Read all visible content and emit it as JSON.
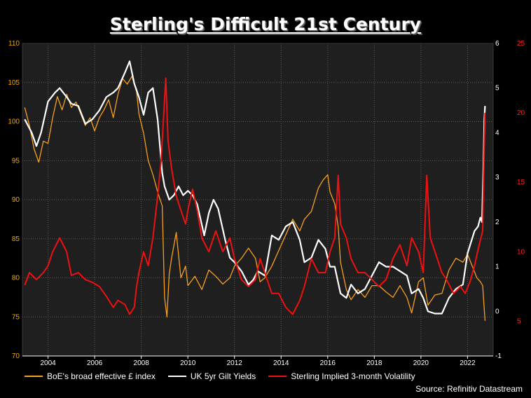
{
  "title": "Sterling's Difficult 21st Century",
  "source": "Source: Refinitiv Datastream",
  "colors": {
    "background": "#000000",
    "plot_background": "#1f1f1f",
    "grid": "#5a5a5a",
    "left_axis": "#f2a900",
    "right_axis_inner": "#ffffff",
    "right_axis_outer": "#ff2020",
    "series_effective": "#f7a01e",
    "series_gilt": "#ffffff",
    "series_vol": "#ee1111"
  },
  "legend": {
    "effective": "BoE's broad effective £ index",
    "gilt": "UK 5yr Gilt Yields",
    "vol": "Sterling Implied 3-month Volatility"
  },
  "chart_data": {
    "type": "line",
    "title": "Sterling's Difficult 21st Century",
    "grid": true,
    "legend_position": "bottom",
    "x_ticks": [
      "2004",
      "2006",
      "2008",
      "2010",
      "2012",
      "2014",
      "2016",
      "2018",
      "2020",
      "2022"
    ],
    "x_range": [
      2002.9,
      2023.1
    ],
    "y_left": {
      "ticks": [
        "70",
        "75",
        "80",
        "85",
        "90",
        "95",
        "100",
        "105",
        "110"
      ],
      "range": [
        70,
        110
      ]
    },
    "y_right_inner": {
      "ticks": [
        "-1",
        "0",
        "1",
        "2",
        "3",
        "4",
        "5",
        "6"
      ],
      "range": [
        -1,
        6
      ]
    },
    "y_right_outer": {
      "ticks": [
        "5",
        "10",
        "15",
        "20",
        "25"
      ],
      "range": [
        2.5,
        25
      ]
    },
    "series": [
      {
        "name": "BoE's broad effective £ index",
        "axis": "left",
        "points": [
          [
            2003.0,
            101.8
          ],
          [
            2003.2,
            99.5
          ],
          [
            2003.4,
            96.5
          ],
          [
            2003.6,
            94.8
          ],
          [
            2003.8,
            97.5
          ],
          [
            2004.0,
            97.2
          ],
          [
            2004.2,
            100.5
          ],
          [
            2004.4,
            103.2
          ],
          [
            2004.6,
            101.5
          ],
          [
            2004.8,
            103.5
          ],
          [
            2005.0,
            101.8
          ],
          [
            2005.2,
            102.5
          ],
          [
            2005.4,
            101.0
          ],
          [
            2005.6,
            99.5
          ],
          [
            2005.8,
            100.5
          ],
          [
            2006.0,
            98.8
          ],
          [
            2006.2,
            100.5
          ],
          [
            2006.4,
            101.5
          ],
          [
            2006.6,
            102.8
          ],
          [
            2006.8,
            100.5
          ],
          [
            2007.0,
            103.5
          ],
          [
            2007.2,
            105.5
          ],
          [
            2007.4,
            104.8
          ],
          [
            2007.6,
            105.8
          ],
          [
            2007.8,
            103.8
          ],
          [
            2007.9,
            101.0
          ],
          [
            2008.1,
            98.5
          ],
          [
            2008.3,
            95.0
          ],
          [
            2008.5,
            93.2
          ],
          [
            2008.7,
            91.0
          ],
          [
            2008.9,
            89.2
          ],
          [
            2009.0,
            77.5
          ],
          [
            2009.1,
            75.0
          ],
          [
            2009.2,
            80.5
          ],
          [
            2009.3,
            82.5
          ],
          [
            2009.5,
            85.8
          ],
          [
            2009.7,
            80.0
          ],
          [
            2009.9,
            81.5
          ],
          [
            2010.0,
            79.0
          ],
          [
            2010.3,
            80.2
          ],
          [
            2010.6,
            78.5
          ],
          [
            2010.9,
            81.0
          ],
          [
            2011.2,
            80.2
          ],
          [
            2011.5,
            79.2
          ],
          [
            2011.8,
            80.0
          ],
          [
            2012.0,
            81.5
          ],
          [
            2012.3,
            82.5
          ],
          [
            2012.6,
            83.8
          ],
          [
            2012.9,
            82.5
          ],
          [
            2013.1,
            79.5
          ],
          [
            2013.3,
            80.0
          ],
          [
            2013.6,
            81.5
          ],
          [
            2013.9,
            83.5
          ],
          [
            2014.2,
            85.5
          ],
          [
            2014.5,
            87.5
          ],
          [
            2014.8,
            86.0
          ],
          [
            2015.0,
            87.5
          ],
          [
            2015.3,
            88.5
          ],
          [
            2015.6,
            91.5
          ],
          [
            2015.8,
            92.5
          ],
          [
            2016.0,
            93.2
          ],
          [
            2016.1,
            91.0
          ],
          [
            2016.3,
            89.5
          ],
          [
            2016.45,
            86.5
          ],
          [
            2016.55,
            82.0
          ],
          [
            2016.8,
            78.5
          ],
          [
            2017.0,
            77.2
          ],
          [
            2017.3,
            78.5
          ],
          [
            2017.6,
            77.5
          ],
          [
            2017.9,
            79.0
          ],
          [
            2018.2,
            79.0
          ],
          [
            2018.5,
            78.2
          ],
          [
            2018.8,
            77.5
          ],
          [
            2019.1,
            79.0
          ],
          [
            2019.4,
            77.5
          ],
          [
            2019.6,
            75.5
          ],
          [
            2019.9,
            79.5
          ],
          [
            2020.1,
            80.0
          ],
          [
            2020.3,
            76.5
          ],
          [
            2020.6,
            77.8
          ],
          [
            2020.9,
            78.0
          ],
          [
            2021.2,
            81.0
          ],
          [
            2021.5,
            82.5
          ],
          [
            2021.8,
            82.0
          ],
          [
            2022.0,
            83.0
          ],
          [
            2022.2,
            81.5
          ],
          [
            2022.4,
            80.0
          ],
          [
            2022.55,
            79.5
          ],
          [
            2022.65,
            79.0
          ],
          [
            2022.75,
            74.5
          ]
        ]
      },
      {
        "name": "UK 5yr Gilt Yields",
        "axis": "right_inner",
        "points": [
          [
            2003.0,
            4.3
          ],
          [
            2003.3,
            4.0
          ],
          [
            2003.5,
            3.7
          ],
          [
            2003.7,
            4.0
          ],
          [
            2004.0,
            4.7
          ],
          [
            2004.3,
            4.9
          ],
          [
            2004.5,
            5.0
          ],
          [
            2004.8,
            4.8
          ],
          [
            2005.0,
            4.65
          ],
          [
            2005.3,
            4.6
          ],
          [
            2005.6,
            4.2
          ],
          [
            2005.9,
            4.3
          ],
          [
            2006.2,
            4.5
          ],
          [
            2006.5,
            4.8
          ],
          [
            2006.8,
            4.9
          ],
          [
            2007.0,
            5.0
          ],
          [
            2007.3,
            5.35
          ],
          [
            2007.5,
            5.6
          ],
          [
            2007.7,
            5.1
          ],
          [
            2007.9,
            4.8
          ],
          [
            2008.1,
            4.4
          ],
          [
            2008.3,
            4.9
          ],
          [
            2008.5,
            5.0
          ],
          [
            2008.7,
            4.3
          ],
          [
            2008.9,
            3.1
          ],
          [
            2009.0,
            2.8
          ],
          [
            2009.2,
            2.5
          ],
          [
            2009.4,
            2.6
          ],
          [
            2009.6,
            2.8
          ],
          [
            2009.8,
            2.6
          ],
          [
            2010.0,
            2.7
          ],
          [
            2010.2,
            2.6
          ],
          [
            2010.4,
            2.4
          ],
          [
            2010.7,
            1.7
          ],
          [
            2010.9,
            2.2
          ],
          [
            2011.1,
            2.5
          ],
          [
            2011.3,
            2.3
          ],
          [
            2011.6,
            1.6
          ],
          [
            2011.8,
            1.2
          ],
          [
            2012.0,
            1.1
          ],
          [
            2012.3,
            0.9
          ],
          [
            2012.6,
            0.6
          ],
          [
            2012.8,
            0.7
          ],
          [
            2013.0,
            0.9
          ],
          [
            2013.3,
            0.8
          ],
          [
            2013.6,
            1.7
          ],
          [
            2013.9,
            1.6
          ],
          [
            2014.2,
            1.9
          ],
          [
            2014.5,
            2.0
          ],
          [
            2014.8,
            1.6
          ],
          [
            2015.0,
            1.1
          ],
          [
            2015.3,
            1.2
          ],
          [
            2015.6,
            1.6
          ],
          [
            2015.9,
            1.4
          ],
          [
            2016.1,
            1.0
          ],
          [
            2016.3,
            1.0
          ],
          [
            2016.55,
            0.4
          ],
          [
            2016.8,
            0.3
          ],
          [
            2017.0,
            0.6
          ],
          [
            2017.3,
            0.4
          ],
          [
            2017.6,
            0.5
          ],
          [
            2017.9,
            0.8
          ],
          [
            2018.2,
            1.1
          ],
          [
            2018.5,
            1.0
          ],
          [
            2018.8,
            1.0
          ],
          [
            2019.1,
            0.9
          ],
          [
            2019.4,
            0.8
          ],
          [
            2019.6,
            0.4
          ],
          [
            2019.9,
            0.5
          ],
          [
            2020.1,
            0.3
          ],
          [
            2020.3,
            0.0
          ],
          [
            2020.6,
            -0.05
          ],
          [
            2020.9,
            -0.05
          ],
          [
            2021.2,
            0.3
          ],
          [
            2021.5,
            0.5
          ],
          [
            2021.8,
            0.6
          ],
          [
            2022.0,
            1.3
          ],
          [
            2022.3,
            1.8
          ],
          [
            2022.45,
            1.9
          ],
          [
            2022.55,
            2.1
          ],
          [
            2022.62,
            2.0
          ],
          [
            2022.68,
            3.2
          ],
          [
            2022.72,
            4.3
          ],
          [
            2022.75,
            4.6
          ]
        ]
      },
      {
        "name": "Sterling Implied 3-month Volatility",
        "axis": "right_outer",
        "points": [
          [
            2003.0,
            7.6
          ],
          [
            2003.2,
            8.5
          ],
          [
            2003.5,
            8.0
          ],
          [
            2003.8,
            8.5
          ],
          [
            2004.0,
            9.0
          ],
          [
            2004.2,
            10.0
          ],
          [
            2004.5,
            11.0
          ],
          [
            2004.8,
            10.0
          ],
          [
            2005.0,
            8.3
          ],
          [
            2005.3,
            8.5
          ],
          [
            2005.6,
            8.0
          ],
          [
            2005.9,
            7.8
          ],
          [
            2006.2,
            7.5
          ],
          [
            2006.5,
            6.8
          ],
          [
            2006.8,
            6.0
          ],
          [
            2007.0,
            6.5
          ],
          [
            2007.3,
            6.2
          ],
          [
            2007.5,
            5.5
          ],
          [
            2007.7,
            6.0
          ],
          [
            2007.8,
            7.5
          ],
          [
            2007.9,
            8.5
          ],
          [
            2008.1,
            10.0
          ],
          [
            2008.3,
            9.0
          ],
          [
            2008.5,
            11.0
          ],
          [
            2008.7,
            14.0
          ],
          [
            2008.85,
            16.5
          ],
          [
            2008.95,
            19.5
          ],
          [
            2009.05,
            22.5
          ],
          [
            2009.15,
            18.0
          ],
          [
            2009.3,
            16.0
          ],
          [
            2009.5,
            14.0
          ],
          [
            2009.7,
            13.0
          ],
          [
            2009.9,
            12.0
          ],
          [
            2010.0,
            13.0
          ],
          [
            2010.2,
            14.5
          ],
          [
            2010.4,
            13.0
          ],
          [
            2010.6,
            11.0
          ],
          [
            2010.9,
            10.0
          ],
          [
            2011.2,
            11.5
          ],
          [
            2011.5,
            10.0
          ],
          [
            2011.8,
            11.0
          ],
          [
            2012.0,
            9.5
          ],
          [
            2012.3,
            8.0
          ],
          [
            2012.6,
            7.5
          ],
          [
            2012.9,
            8.0
          ],
          [
            2013.1,
            9.5
          ],
          [
            2013.3,
            8.5
          ],
          [
            2013.6,
            7.0
          ],
          [
            2013.9,
            7.0
          ],
          [
            2014.2,
            6.0
          ],
          [
            2014.5,
            5.5
          ],
          [
            2014.8,
            6.5
          ],
          [
            2015.0,
            7.5
          ],
          [
            2015.3,
            9.5
          ],
          [
            2015.6,
            8.5
          ],
          [
            2015.9,
            8.5
          ],
          [
            2016.1,
            10.0
          ],
          [
            2016.3,
            11.0
          ],
          [
            2016.45,
            15.5
          ],
          [
            2016.55,
            12.0
          ],
          [
            2016.8,
            11.0
          ],
          [
            2017.0,
            9.5
          ],
          [
            2017.3,
            8.5
          ],
          [
            2017.6,
            8.5
          ],
          [
            2017.9,
            8.0
          ],
          [
            2018.2,
            7.5
          ],
          [
            2018.5,
            8.0
          ],
          [
            2018.8,
            9.5
          ],
          [
            2019.1,
            10.5
          ],
          [
            2019.4,
            9.0
          ],
          [
            2019.6,
            11.0
          ],
          [
            2019.9,
            10.0
          ],
          [
            2020.1,
            8.5
          ],
          [
            2020.25,
            15.5
          ],
          [
            2020.4,
            11.0
          ],
          [
            2020.7,
            9.5
          ],
          [
            2020.9,
            8.5
          ],
          [
            2021.1,
            8.0
          ],
          [
            2021.4,
            7.0
          ],
          [
            2021.7,
            7.5
          ],
          [
            2021.9,
            7.0
          ],
          [
            2022.1,
            7.8
          ],
          [
            2022.3,
            9.0
          ],
          [
            2022.5,
            10.5
          ],
          [
            2022.65,
            11.5
          ],
          [
            2022.7,
            16.0
          ],
          [
            2022.75,
            20.0
          ]
        ]
      }
    ]
  }
}
